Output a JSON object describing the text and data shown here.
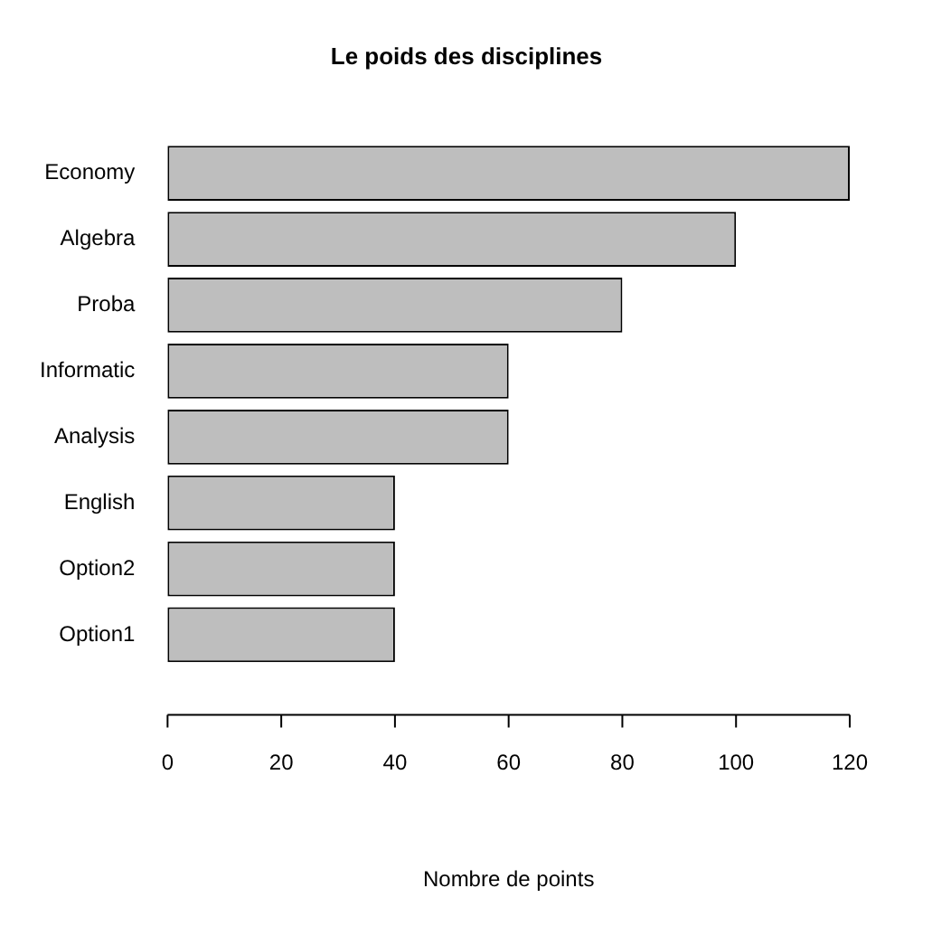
{
  "chart_data": {
    "type": "bar",
    "orientation": "horizontal",
    "title": "Le poids des disciplines",
    "xlabel": "Nombre de points",
    "categories": [
      "Economy",
      "Algebra",
      "Proba",
      "Informatic",
      "Analysis",
      "English",
      "Option2",
      "Option1"
    ],
    "values": [
      120,
      100,
      80,
      60,
      60,
      40,
      40,
      40
    ],
    "color": "#bebebe",
    "xlim": [
      0,
      120
    ],
    "xticks": [
      0,
      20,
      40,
      60,
      80,
      100,
      120
    ]
  }
}
